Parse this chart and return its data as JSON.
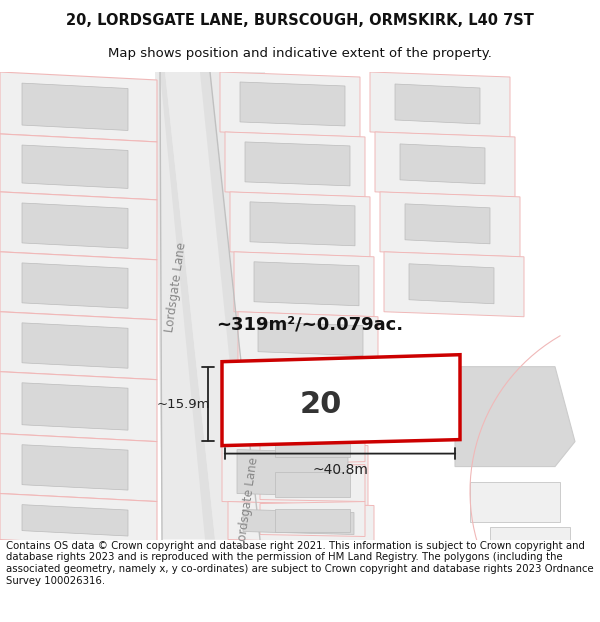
{
  "title_line1": "20, LORDSGATE LANE, BURSCOUGH, ORMSKIRK, L40 7ST",
  "title_line2": "Map shows position and indicative extent of the property.",
  "footer_text": "Contains OS data © Crown copyright and database right 2021. This information is subject to Crown copyright and database rights 2023 and is reproduced with the permission of HM Land Registry. The polygons (including the associated geometry, namely x, y co-ordinates) are subject to Crown copyright and database rights 2023 Ordnance Survey 100026316.",
  "area_label": "~319m²/~0.079ac.",
  "number_label": "20",
  "width_label": "~40.8m",
  "height_label": "~15.9m",
  "road_label": "Lordsgate Lane",
  "title_fontsize": 10.5,
  "subtitle_fontsize": 9.5,
  "footer_fontsize": 7.3,
  "bg_color": "#ffffff",
  "map_bg": "#f8f8f8",
  "road_fill": "#e8e8e8",
  "plot_fill": "#f0f0f0",
  "plot_edge": "#cccccc",
  "inner_fill": "#d8d8d8",
  "inner_edge": "#bbbbbb",
  "pink": "#f0b8b8",
  "highlight_fill": "#ffffff",
  "highlight_edge": "#cc0000",
  "dim_color": "#222222",
  "road_text_color": "#888888"
}
